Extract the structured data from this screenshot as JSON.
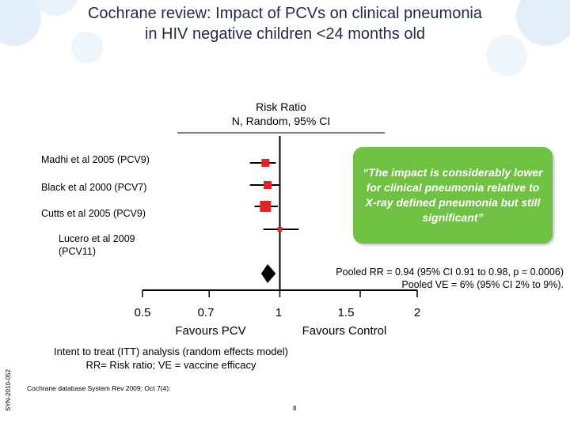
{
  "title_lines": [
    "Cochrane review: Impact of PCVs on clinical pneumonia",
    "in HIV negative children <24 months old"
  ],
  "chart_data": {
    "type": "forest",
    "header_lines": [
      "Risk Ratio",
      "N, Random, 95% CI"
    ],
    "x_scale": "log",
    "xlim": [
      0.5,
      2
    ],
    "x_ticks": [
      "0.5",
      "0.7",
      "1",
      "1.5",
      "2"
    ],
    "reference_line": 1,
    "favours_left": "Favours PCV",
    "favours_right": "Favours Control",
    "studies": [
      {
        "label": "Madhi et al 2005 (PCV9)",
        "rr": 0.93,
        "ci": [
          0.86,
          0.98
        ],
        "marker_color": "#e8202a"
      },
      {
        "label": "Black et al 2000 (PCV7)",
        "rr": 0.94,
        "ci": [
          0.86,
          1.0
        ],
        "marker_color": "#e8202a"
      },
      {
        "label": "Cutts et al 2005 (PCV9)",
        "rr": 0.93,
        "ci": [
          0.88,
          0.99
        ],
        "marker_color": "#e8202a"
      },
      {
        "label": "Lucero et al 2009 (PCV11)",
        "rr": 1.0,
        "ci": [
          0.92,
          1.1
        ],
        "marker_color": "#e8202a"
      }
    ],
    "pooled": {
      "rr": 0.94,
      "ci": [
        0.91,
        0.98
      ]
    },
    "pooled_text": [
      "Pooled RR = 0.94 (95% CI 0.91 to 0.98, p = 0.0006)",
      "Pooled VE = 6% (95% CI 2% to 9%)."
    ]
  },
  "callout_text": "“The impact is considerably lower for clinical pneumonia relative to X-ray defined pneumonia but still significant”",
  "footnote_lines": [
    "Intent to treat (ITT) analysis (random effects model)",
    "RR= Risk ratio; VE = vaccine efficacy"
  ],
  "source": "Cochrane database System Rev 2009; Oct 7(4):",
  "slide_code": "SYN-2010-052",
  "page_number": "8",
  "colors": {
    "title": "#1f2a44",
    "marker": "#e8202a",
    "callout": "#70c044"
  }
}
